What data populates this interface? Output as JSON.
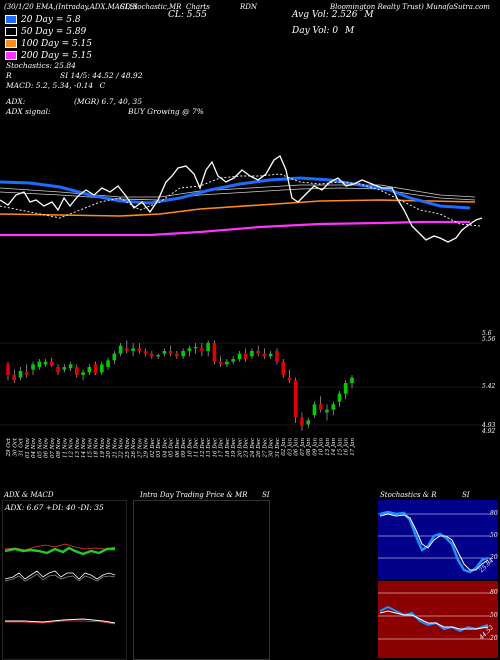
{
  "header": {
    "date": "(30/1/20",
    "title_left": "EMA,(Intraday,ADX,MACD,S",
    "title_mid": "SI,Stochastic,MR",
    "charts_label": "Charts",
    "symbol": "RDN",
    "company": "Bloomington Realty Trust) MunafaSutra.com",
    "cl": "CL: 5.55",
    "avg_vol": "Avg Vol: 2.526",
    "avg_vol_unit": "M",
    "day_vol": "Day Vol: 0",
    "day_vol_unit": "M"
  },
  "legend": {
    "ema20": "20 Day = 5.8",
    "ema50": "50 Day = 5.89",
    "ema100": "100 Day = 5.15",
    "ema200": "200  Day = 5.15",
    "colors": {
      "ema20": "#1e6bff",
      "ema50": "#ffffff",
      "ema100": "#ff8c1a",
      "ema200": "#ff33ff"
    }
  },
  "indicators": {
    "stochastics": "Stochastics: 25.84",
    "r_si": "R",
    "si_values": "SI 14/5: 44.52 / 48.92",
    "macd": "MACD: 5.2, 5.34, -0.14",
    "macd_c": "C",
    "adx": "ADX:",
    "adx_mgr": "(MGR) 6.7, 40, 35",
    "adx_signal": "ADX  signal:",
    "buy_signal": "BUY Growing @ 7%"
  },
  "price_axis": [
    "5.6",
    "5.56",
    "5.42",
    "4.93",
    "4.92"
  ],
  "dates": [
    "29 Oct",
    "30 Oct",
    "31 Oct",
    "01 Nov",
    "04 Nov",
    "05 Nov",
    "06 Nov",
    "07 Nov",
    "08 Nov",
    "11 Nov",
    "12 Nov",
    "13 Nov",
    "14 Nov",
    "15 Nov",
    "18 Nov",
    "19 Nov",
    "20 Nov",
    "21 Nov",
    "22 Nov",
    "25 Nov",
    "26 Nov",
    "27 Nov",
    "29 Nov",
    "02 Dec",
    "03 Dec",
    "04 Dec",
    "05 Dec",
    "06 Dec",
    "09 Dec",
    "10 Dec",
    "11 Dec",
    "12 Dec",
    "13 Dec",
    "16 Dec",
    "17 Dec",
    "18 Dec",
    "19 Dec",
    "20 Dec",
    "23 Dec",
    "24 Dec",
    "26 Dec",
    "27 Dec",
    "30 Dec",
    "31 Dec",
    "02 Jan",
    "03 Jan",
    "06 Jan",
    "07 Jan",
    "08 Jan",
    "09 Jan",
    "10 Jan",
    "13 Jan",
    "14 Jan",
    "15 Jan",
    "16 Jan",
    "17 Jan"
  ],
  "panels": {
    "adx_title": "ADX  & MACD",
    "adx_values": "ADX: 6.67  +DI: 40  -DI: 35",
    "intra_title": "Intra  Day Trading Price  & MR",
    "intra_si": "SI",
    "stoch_title": "Stochastics & R",
    "stoch_si": "SI",
    "stoch_levels": [
      "80",
      "50",
      "20"
    ],
    "stoch_value": "25.84",
    "rsi_levels": [
      "80",
      "50",
      "20"
    ],
    "rsi_value": "44.52"
  },
  "chart_data": {
    "type": "candlestick",
    "ylim": [
      4.9,
      5.62
    ],
    "ohlc": [
      [
        5.4,
        5.42,
        5.28,
        5.32
      ],
      [
        5.32,
        5.36,
        5.26,
        5.28
      ],
      [
        5.3,
        5.38,
        5.28,
        5.35
      ],
      [
        5.34,
        5.4,
        5.3,
        5.32
      ],
      [
        5.36,
        5.42,
        5.32,
        5.4
      ],
      [
        5.38,
        5.44,
        5.36,
        5.42
      ],
      [
        5.4,
        5.44,
        5.38,
        5.42
      ],
      [
        5.42,
        5.45,
        5.38,
        5.39
      ],
      [
        5.38,
        5.4,
        5.32,
        5.34
      ],
      [
        5.36,
        5.4,
        5.34,
        5.38
      ],
      [
        5.37,
        5.42,
        5.35,
        5.4
      ],
      [
        5.38,
        5.4,
        5.3,
        5.32
      ],
      [
        5.32,
        5.36,
        5.28,
        5.34
      ],
      [
        5.34,
        5.4,
        5.32,
        5.38
      ],
      [
        5.4,
        5.42,
        5.32,
        5.33
      ],
      [
        5.34,
        5.42,
        5.32,
        5.4
      ],
      [
        5.38,
        5.45,
        5.36,
        5.43
      ],
      [
        5.43,
        5.5,
        5.4,
        5.48
      ],
      [
        5.48,
        5.56,
        5.46,
        5.54
      ],
      [
        5.52,
        5.58,
        5.48,
        5.5
      ],
      [
        5.5,
        5.56,
        5.46,
        5.52
      ],
      [
        5.52,
        5.56,
        5.48,
        5.5
      ],
      [
        5.5,
        5.52,
        5.46,
        5.48
      ],
      [
        5.48,
        5.5,
        5.44,
        5.46
      ],
      [
        5.46,
        5.48,
        5.44,
        5.47
      ],
      [
        5.48,
        5.52,
        5.46,
        5.5
      ],
      [
        5.5,
        5.54,
        5.46,
        5.48
      ],
      [
        5.48,
        5.5,
        5.44,
        5.46
      ],
      [
        5.46,
        5.52,
        5.44,
        5.5
      ],
      [
        5.5,
        5.54,
        5.46,
        5.52
      ],
      [
        5.52,
        5.56,
        5.48,
        5.53
      ],
      [
        5.52,
        5.56,
        5.46,
        5.5
      ],
      [
        5.5,
        5.58,
        5.46,
        5.56
      ],
      [
        5.56,
        5.58,
        5.4,
        5.42
      ],
      [
        5.42,
        5.46,
        5.38,
        5.4
      ],
      [
        5.4,
        5.44,
        5.38,
        5.42
      ],
      [
        5.42,
        5.46,
        5.4,
        5.44
      ],
      [
        5.44,
        5.5,
        5.42,
        5.48
      ],
      [
        5.48,
        5.52,
        5.42,
        5.44
      ],
      [
        5.46,
        5.52,
        5.44,
        5.5
      ],
      [
        5.5,
        5.54,
        5.46,
        5.48
      ],
      [
        5.48,
        5.52,
        5.44,
        5.46
      ],
      [
        5.46,
        5.5,
        5.44,
        5.48
      ],
      [
        5.5,
        5.52,
        5.4,
        5.42
      ],
      [
        5.42,
        5.44,
        5.3,
        5.32
      ],
      [
        5.3,
        5.36,
        5.26,
        5.28
      ],
      [
        5.28,
        5.3,
        4.96,
        5.0
      ],
      [
        5.0,
        5.04,
        4.9,
        4.94
      ],
      [
        4.95,
        5.0,
        4.92,
        4.98
      ],
      [
        5.02,
        5.12,
        5.0,
        5.1
      ],
      [
        5.1,
        5.16,
        5.04,
        5.06
      ],
      [
        5.04,
        5.1,
        4.98,
        5.06
      ],
      [
        5.06,
        5.12,
        5.02,
        5.1
      ],
      [
        5.12,
        5.2,
        5.08,
        5.18
      ],
      [
        5.18,
        5.28,
        5.14,
        5.26
      ],
      [
        5.26,
        5.32,
        5.22,
        5.3
      ]
    ]
  }
}
